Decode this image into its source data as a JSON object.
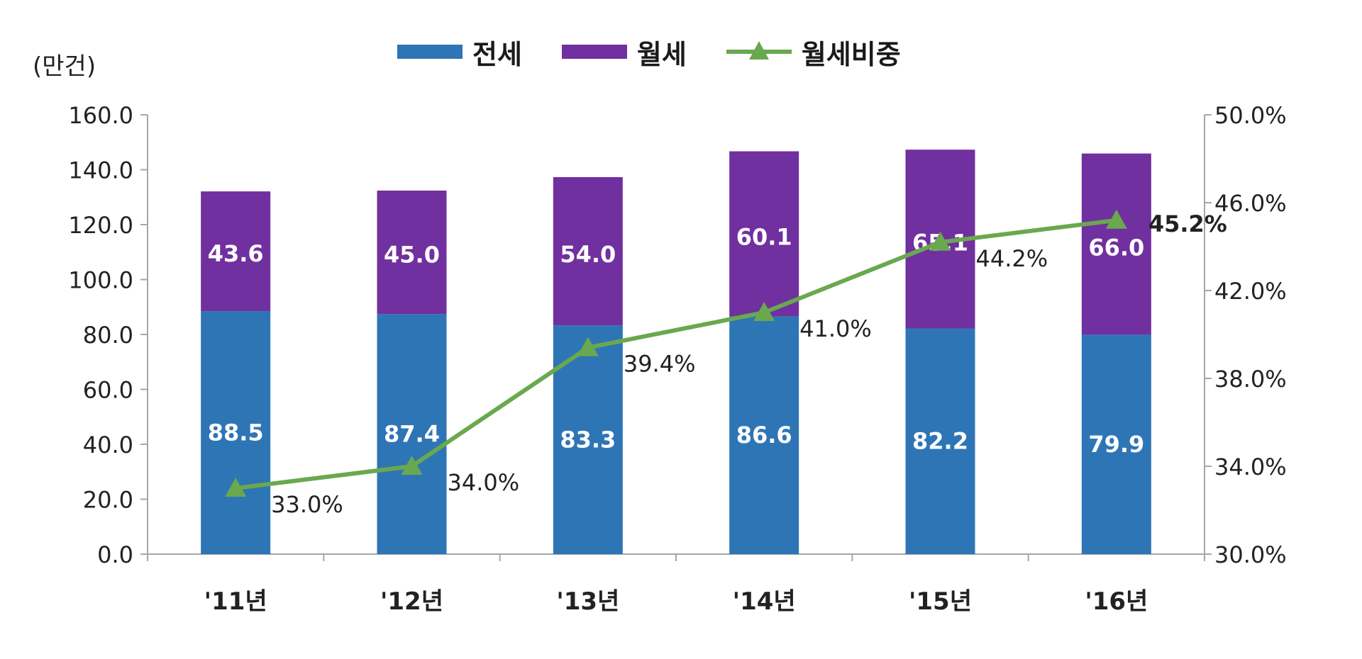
{
  "chart_data": {
    "type": "bar",
    "stacked": true,
    "unit_label": "(만건)",
    "categories": [
      "'11년",
      "'12년",
      "'13년",
      "'14년",
      "'15년",
      "'16년"
    ],
    "series": [
      {
        "name": "전세",
        "kind": "bar",
        "axis": "left",
        "color": "#2e75b6",
        "values": [
          88.5,
          87.4,
          83.3,
          86.6,
          82.2,
          79.9
        ]
      },
      {
        "name": "월세",
        "kind": "bar",
        "axis": "left",
        "color": "#7030a0",
        "values": [
          43.6,
          45.0,
          54.0,
          60.1,
          65.1,
          66.0
        ]
      },
      {
        "name": "월세비중",
        "kind": "line",
        "axis": "right",
        "color": "#6aa84f",
        "marker": "triangle",
        "values": [
          33.0,
          34.0,
          39.4,
          41.0,
          44.2,
          45.2
        ]
      }
    ],
    "bar_labels": {
      "전세": [
        "88.5",
        "87.4",
        "83.3",
        "86.6",
        "82.2",
        "79.9"
      ],
      "월세": [
        "43.6",
        "45.0",
        "54.0",
        "60.1",
        "65.1",
        "66.0"
      ]
    },
    "line_labels": [
      "33.0%",
      "34.0%",
      "39.4%",
      "41.0%",
      "44.2%",
      "45.2%"
    ],
    "y_left": {
      "min": 0,
      "max": 160,
      "step": 20,
      "ticks": [
        "0.0",
        "20.0",
        "40.0",
        "60.0",
        "80.0",
        "100.0",
        "120.0",
        "140.0",
        "160.0"
      ]
    },
    "y_right": {
      "min": 30,
      "max": 50,
      "step": 4,
      "ticks": [
        "30.0%",
        "34.0%",
        "38.0%",
        "42.0%",
        "46.0%",
        "50.0%"
      ]
    },
    "grid": false,
    "legend_position": "top-center"
  }
}
